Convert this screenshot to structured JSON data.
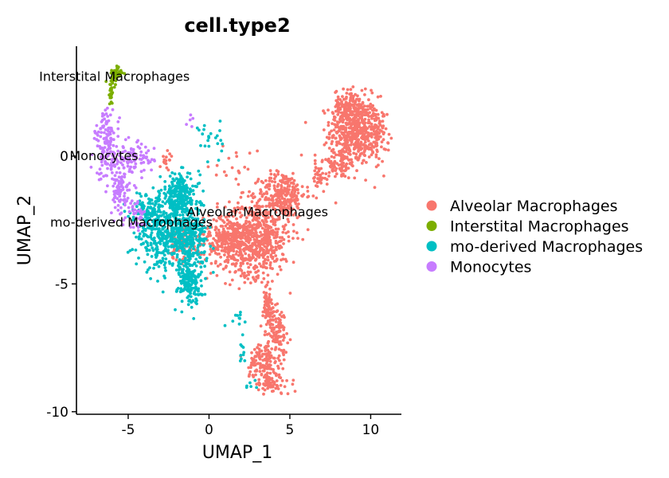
{
  "chart_data": {
    "type": "scatter",
    "title": "cell.type2",
    "xlabel": "UMAP_1",
    "ylabel": "UMAP_2",
    "xlim": [
      -8.2,
      11.9
    ],
    "ylim": [
      -10.1,
      4.3
    ],
    "x_ticks": [
      -5,
      0,
      5,
      10
    ],
    "x_tick_labels": [
      "-5",
      "0",
      "5",
      "10"
    ],
    "y_ticks": [
      0,
      -5,
      -10
    ],
    "y_tick_labels": [
      "0",
      "-5",
      "-10"
    ],
    "grid": false,
    "legend_position": "right",
    "series": [
      {
        "name": "Alveolar Macrophages",
        "color": "#F8766D",
        "clusters": [
          {
            "cx": 9.0,
            "cy": 1.0,
            "sx": 1.0,
            "sy": 0.9,
            "n": 520
          },
          {
            "cx": 8.5,
            "cy": 2.0,
            "sx": 0.5,
            "sy": 0.4,
            "n": 90
          },
          {
            "cx": 10.4,
            "cy": 0.8,
            "sx": 0.4,
            "sy": 0.7,
            "n": 80
          },
          {
            "cx": 8.0,
            "cy": -0.3,
            "sx": 0.8,
            "sy": 0.4,
            "n": 80
          },
          {
            "cx": 6.8,
            "cy": -0.9,
            "sx": 0.3,
            "sy": 0.4,
            "n": 40
          },
          {
            "cx": 4.6,
            "cy": -1.5,
            "sx": 0.9,
            "sy": 0.6,
            "n": 250
          },
          {
            "cx": 3.0,
            "cy": -3.2,
            "sx": 1.3,
            "sy": 1.0,
            "n": 620
          },
          {
            "cx": 1.2,
            "cy": -3.3,
            "sx": 0.8,
            "sy": 0.7,
            "n": 250
          },
          {
            "cx": -1.3,
            "cy": -3.3,
            "sx": 0.8,
            "sy": 0.6,
            "n": 120
          },
          {
            "cx": 3.6,
            "cy": -6.0,
            "sx": 0.3,
            "sy": 0.5,
            "n": 80
          },
          {
            "cx": 4.3,
            "cy": -6.8,
            "sx": 0.4,
            "sy": 0.6,
            "n": 90
          },
          {
            "cx": 3.4,
            "cy": -8.0,
            "sx": 0.6,
            "sy": 0.5,
            "n": 130
          },
          {
            "cx": 3.8,
            "cy": -8.9,
            "sx": 0.8,
            "sy": 0.3,
            "n": 80
          },
          {
            "cx": -2.6,
            "cy": -0.2,
            "sx": 0.3,
            "sy": 0.3,
            "n": 15
          },
          {
            "cx": 1.8,
            "cy": -0.5,
            "sx": 0.8,
            "sy": 0.5,
            "n": 20
          }
        ]
      },
      {
        "name": "Interstital Macrophages",
        "color": "#7CAE00",
        "clusters": [
          {
            "cx": -5.8,
            "cy": 3.2,
            "sx": 0.25,
            "sy": 0.22,
            "n": 55
          },
          {
            "cx": -6.05,
            "cy": 2.5,
            "sx": 0.12,
            "sy": 0.35,
            "n": 25
          }
        ]
      },
      {
        "name": "mo-derived Macrophages",
        "color": "#00BFC4",
        "clusters": [
          {
            "cx": -1.8,
            "cy": -1.6,
            "sx": 0.8,
            "sy": 0.6,
            "n": 250
          },
          {
            "cx": -3.0,
            "cy": -3.0,
            "sx": 1.0,
            "sy": 0.9,
            "n": 330
          },
          {
            "cx": -1.3,
            "cy": -3.3,
            "sx": 0.8,
            "sy": 0.8,
            "n": 280
          },
          {
            "cx": -1.2,
            "cy": -4.9,
            "sx": 0.5,
            "sy": 0.6,
            "n": 160
          },
          {
            "cx": -3.8,
            "cy": -2.2,
            "sx": 0.5,
            "sy": 0.5,
            "n": 70
          },
          {
            "cx": 0.1,
            "cy": 0.6,
            "sx": 0.5,
            "sy": 0.6,
            "n": 22
          },
          {
            "cx": 1.8,
            "cy": -6.3,
            "sx": 0.3,
            "sy": 0.3,
            "n": 10
          },
          {
            "cx": 2.1,
            "cy": -7.6,
            "sx": 0.15,
            "sy": 0.3,
            "n": 10
          },
          {
            "cx": 2.5,
            "cy": -9.0,
            "sx": 0.3,
            "sy": 0.2,
            "n": 6
          }
        ]
      },
      {
        "name": "Monocytes",
        "color": "#C77CFF",
        "clusters": [
          {
            "cx": -6.3,
            "cy": 0.4,
            "sx": 0.5,
            "sy": 0.9,
            "n": 150
          },
          {
            "cx": -4.6,
            "cy": -0.1,
            "sx": 0.8,
            "sy": 0.4,
            "n": 80
          },
          {
            "cx": -5.5,
            "cy": -1.4,
            "sx": 0.4,
            "sy": 0.6,
            "n": 90
          },
          {
            "cx": -4.5,
            "cy": -2.3,
            "sx": 0.4,
            "sy": 0.4,
            "n": 40
          },
          {
            "cx": -1.2,
            "cy": 1.6,
            "sx": 0.2,
            "sy": 0.3,
            "n": 5
          }
        ]
      }
    ],
    "cluster_labels": [
      {
        "text": "Interstital Macrophages",
        "x": -5.85,
        "y": 3.1
      },
      {
        "text": "Monocytes",
        "x": -6.5,
        "y": 0.0
      },
      {
        "text": "Alveolar Macrophages",
        "x": 3.0,
        "y": -2.2
      },
      {
        "text": "mo-derived Macrophages",
        "x": -4.8,
        "y": -2.6
      }
    ]
  }
}
